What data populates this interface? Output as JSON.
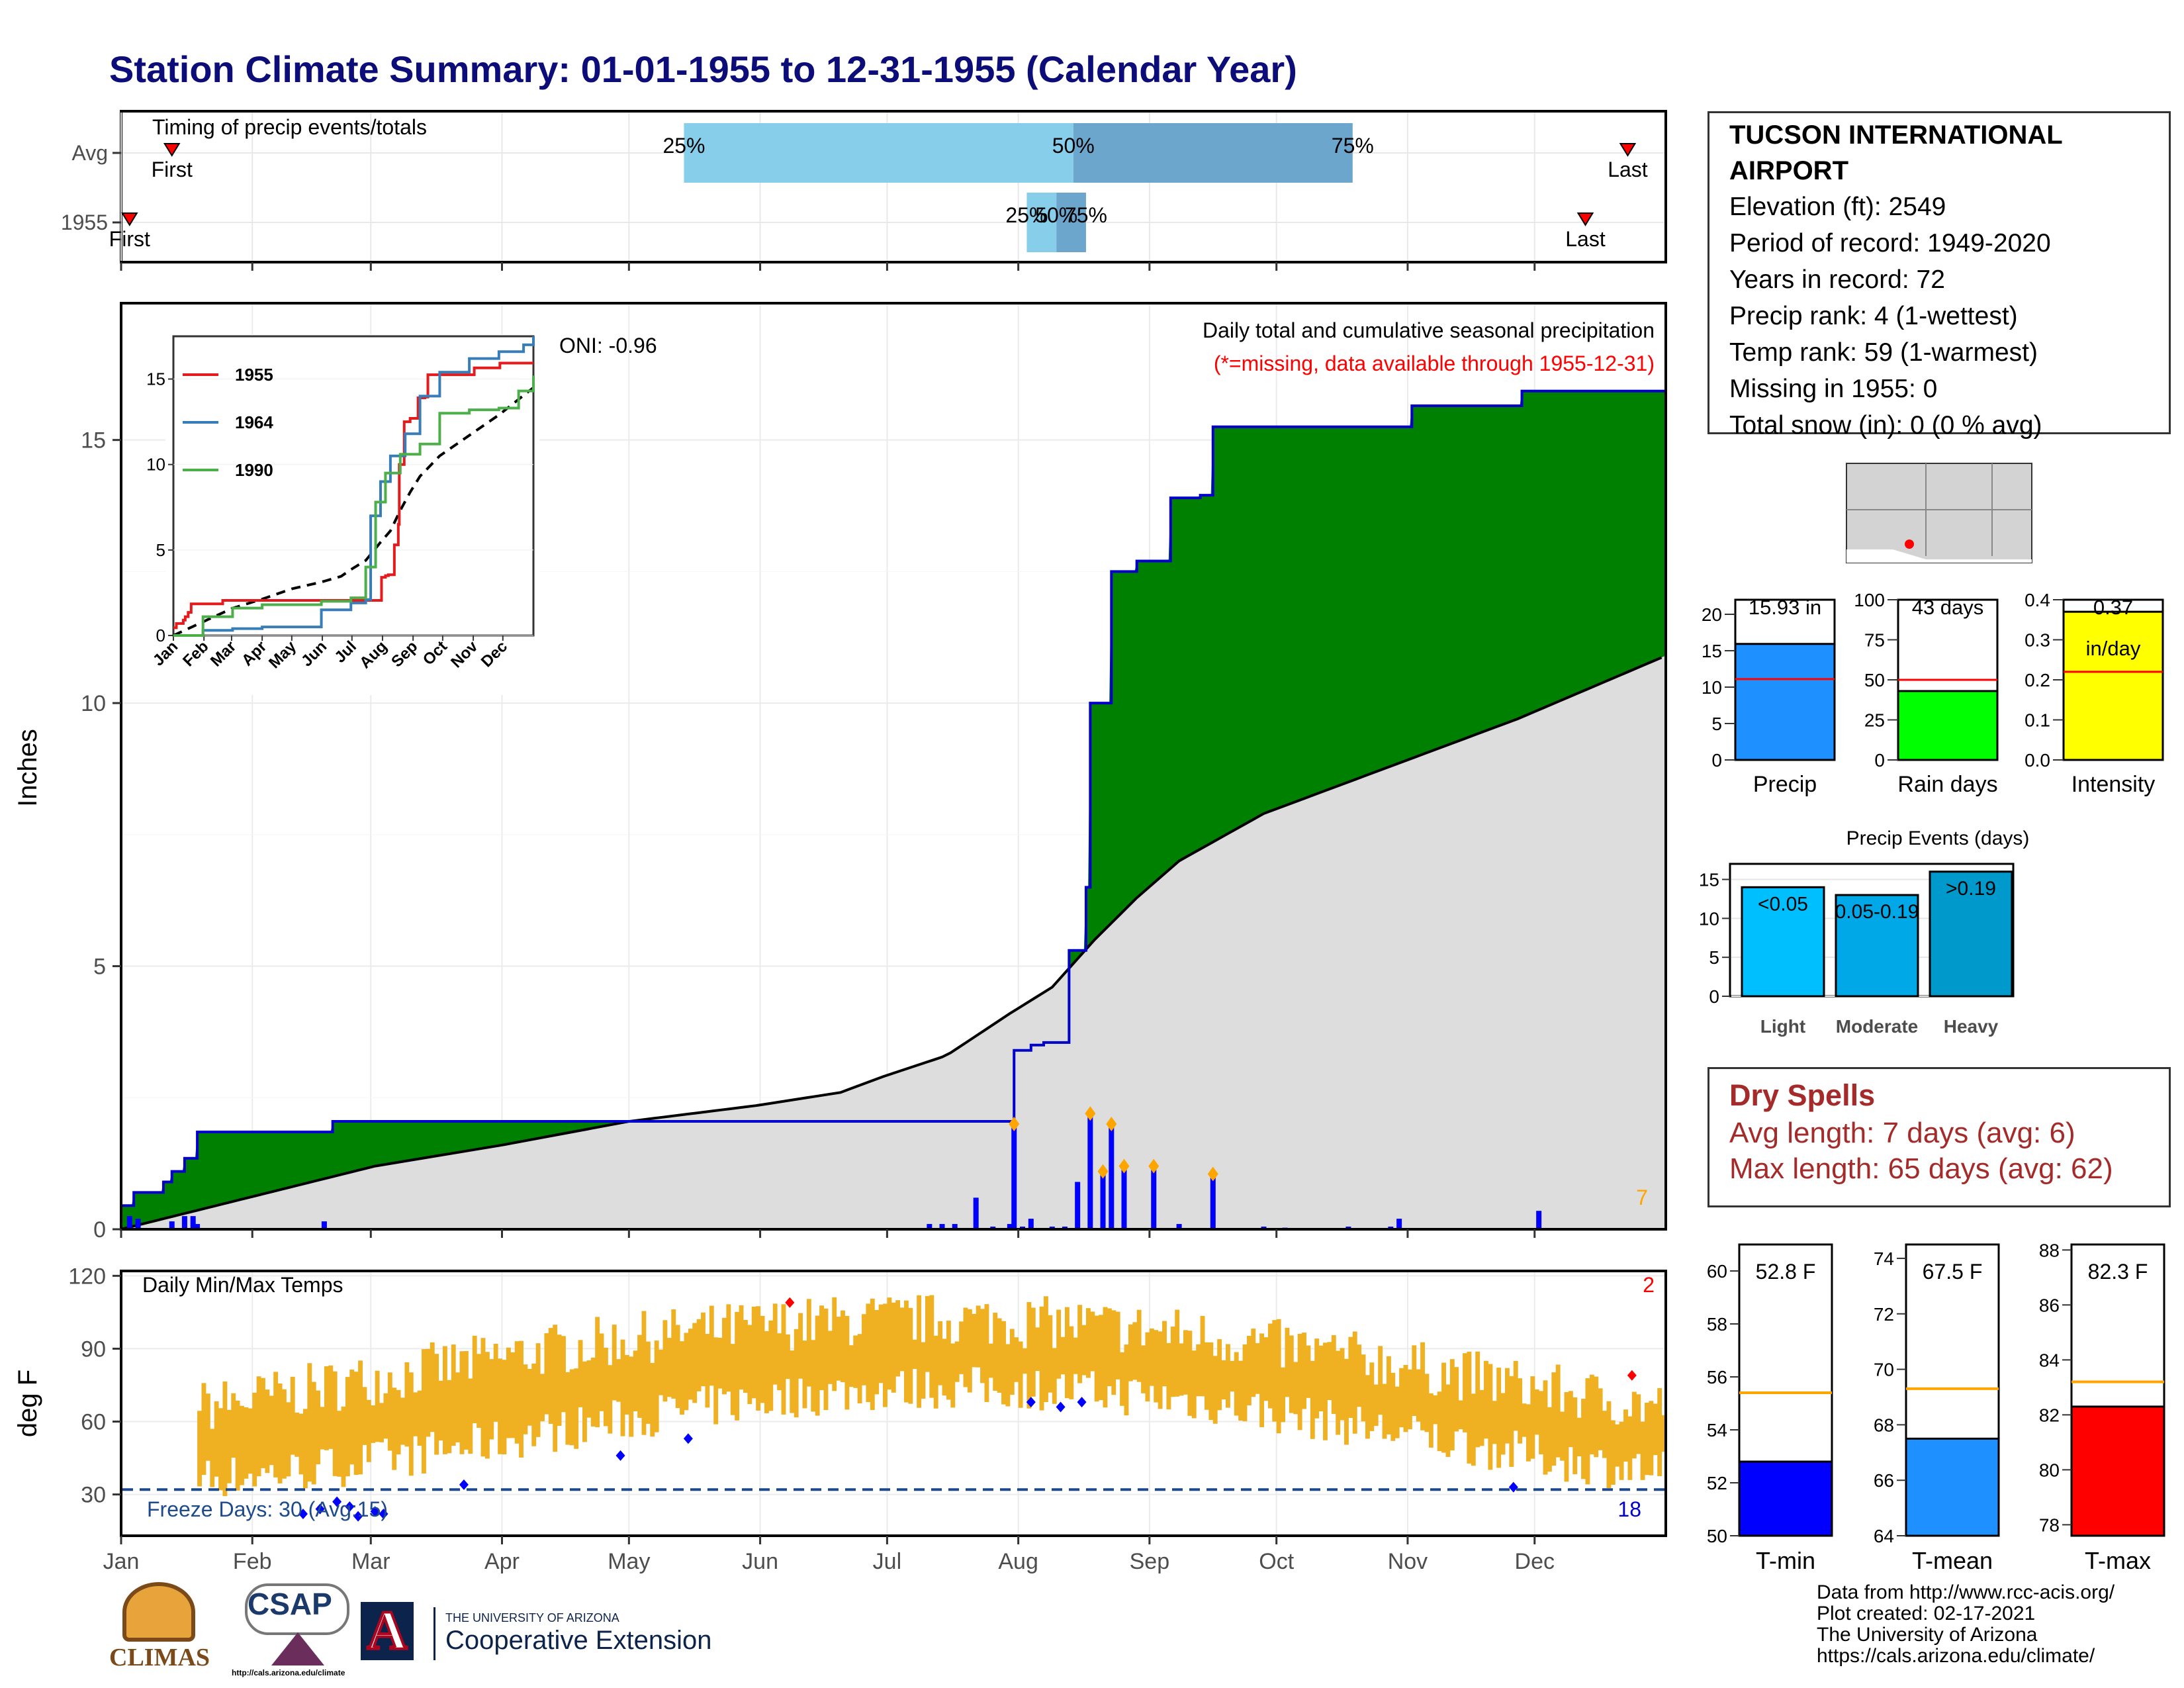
{
  "title": "Station Climate Summary: 01-01-1955 to 12-31-1955 (Calendar Year)",
  "colors": {
    "title": "#0d0d7a",
    "precip_bar": "#0000ff",
    "cum_wet": "#008000",
    "cum_dry": "#7f4f00",
    "normal_fill": "#dddddd",
    "temp_band": "#efb122",
    "tmax_avg": "#ff0000",
    "tmin_avg": "#0000cc",
    "dry_spells": "#a52a2a"
  },
  "station_info": {
    "name": "TUCSON INTERNATIONAL AIRPORT",
    "elevation": "Elevation (ft): 2549",
    "period": "Period of record: 1949-2020",
    "years": "Years in record: 72",
    "precip_rank": "Precip rank: 4 (1-wettest)",
    "temp_rank": "Temp rank: 59 (1-warmest)",
    "missing": "Missing in 1955: 0",
    "snow": "Total snow (in): 0 (0 % avg)"
  },
  "timing_panel": {
    "title": "Timing of precip events/totals",
    "rows": [
      "Avg",
      "1955"
    ],
    "avg": {
      "first_day": 12,
      "p25_day": 133,
      "p50_day": 225,
      "p75_day": 291,
      "last_day": 356
    },
    "year": {
      "first_day": 2,
      "p25_day": 214,
      "p50_day": 221,
      "p75_day": 228,
      "last_day": 346
    },
    "labels": {
      "p25": "25%",
      "p50": "50%",
      "p75": "75%",
      "first": "First",
      "last": "Last"
    }
  },
  "precip_panel": {
    "title": "Daily total and cumulative seasonal precipitation",
    "missing_note": "(*=missing, data available through 1955-12-31)",
    "ylabel": "Inches",
    "oni": "ONI: -0.96",
    "corner_count": "7",
    "y_ticks": [
      "0",
      "5",
      "10",
      "15"
    ],
    "ylim": [
      0,
      17.6
    ],
    "cumulative_1955": [
      [
        0,
        0.45
      ],
      [
        3,
        0.7
      ],
      [
        10,
        0.9
      ],
      [
        12,
        1.1
      ],
      [
        15,
        1.35
      ],
      [
        18,
        1.85
      ],
      [
        50,
        2.05
      ],
      [
        210,
        2.05
      ],
      [
        211,
        3.4
      ],
      [
        212,
        3.4
      ],
      [
        215,
        3.5
      ],
      [
        218,
        3.55
      ],
      [
        220,
        3.55
      ],
      [
        224,
        5.3
      ],
      [
        228,
        6.5
      ],
      [
        229,
        10.0
      ],
      [
        234,
        12.5
      ],
      [
        240,
        12.7
      ],
      [
        248,
        13.9
      ],
      [
        255,
        13.95
      ],
      [
        258,
        15.25
      ],
      [
        300,
        15.25
      ],
      [
        305,
        15.65
      ],
      [
        330,
        15.65
      ],
      [
        331,
        15.93
      ],
      [
        365,
        15.93
      ]
    ],
    "cumulative_normal": [
      [
        0,
        0
      ],
      [
        30,
        0.6
      ],
      [
        60,
        1.2
      ],
      [
        90,
        1.6
      ],
      [
        120,
        2.05
      ],
      [
        150,
        2.35
      ],
      [
        170,
        2.6
      ],
      [
        180,
        2.9
      ],
      [
        195,
        3.3
      ],
      [
        210,
        4.1
      ],
      [
        220,
        4.6
      ],
      [
        230,
        5.5
      ],
      [
        240,
        6.3
      ],
      [
        250,
        7.0
      ],
      [
        270,
        7.9
      ],
      [
        300,
        8.8
      ],
      [
        330,
        9.7
      ],
      [
        365,
        10.9
      ]
    ],
    "daily_bars": [
      [
        2,
        0.25
      ],
      [
        4,
        0.2
      ],
      [
        12,
        0.15
      ],
      [
        15,
        0.25
      ],
      [
        17,
        0.25
      ],
      [
        18,
        0.1
      ],
      [
        48,
        0.15
      ],
      [
        191,
        0.1
      ],
      [
        194,
        0.1
      ],
      [
        197,
        0.1
      ],
      [
        202,
        0.6
      ],
      [
        206,
        0.05
      ],
      [
        210,
        0.1
      ],
      [
        211,
        2.0
      ],
      [
        213,
        0.05
      ],
      [
        215,
        0.2
      ],
      [
        220,
        0.05
      ],
      [
        223,
        0.05
      ],
      [
        226,
        0.9
      ],
      [
        229,
        2.2
      ],
      [
        232,
        1.1
      ],
      [
        234,
        2.0
      ],
      [
        237,
        1.2
      ],
      [
        244,
        1.2
      ],
      [
        250,
        0.1
      ],
      [
        258,
        1.05
      ],
      [
        270,
        0.05
      ],
      [
        275,
        0.03
      ],
      [
        290,
        0.05
      ],
      [
        300,
        0.05
      ],
      [
        302,
        0.2
      ],
      [
        335,
        0.35
      ]
    ],
    "inset": {
      "series": [
        {
          "name": "1955",
          "color": "#e41a1c"
        },
        {
          "name": "1964",
          "color": "#377eb8"
        },
        {
          "name": "1990",
          "color": "#4daf4a"
        }
      ],
      "months": [
        "Jan",
        "Feb",
        "Mar",
        "Apr",
        "May",
        "Jun",
        "Jul",
        "Aug",
        "Sep",
        "Oct",
        "Nov",
        "Dec"
      ],
      "y_ticks": [
        "0",
        "5",
        "10",
        "15"
      ],
      "ylim": [
        0,
        17.5
      ]
    }
  },
  "temp_panel": {
    "title": "Daily Min/Max Temps",
    "ylabel": "deg F",
    "freeze_text": "Freeze Days: 30 (Avg:15)",
    "right_top_count": "2",
    "right_bottom_count": "18",
    "y_ticks": [
      "30",
      "60",
      "90",
      "120"
    ],
    "ylim": [
      13,
      122
    ],
    "freeze_line": 32,
    "months": [
      "Jan",
      "Feb",
      "Mar",
      "Apr",
      "May",
      "Jun",
      "Jul",
      "Aug",
      "Sep",
      "Oct",
      "Nov",
      "Dec"
    ]
  },
  "summary_bars": [
    {
      "label": "Precip",
      "value": 15.93,
      "avg": 11.1,
      "max": 22,
      "ticks": [
        "0",
        "5",
        "10",
        "15",
        "20"
      ],
      "tickvals": [
        0,
        5,
        10,
        15,
        20
      ],
      "text": "15.93 in",
      "color": "#1e90ff"
    },
    {
      "label": "Rain days",
      "value": 43,
      "avg": 50,
      "max": 100,
      "ticks": [
        "0",
        "25",
        "50",
        "75",
        "100"
      ],
      "tickvals": [
        0,
        25,
        50,
        75,
        100
      ],
      "text": "43 days",
      "color": "#00ff00"
    },
    {
      "label": "Intensity",
      "value": 0.37,
      "avg": 0.22,
      "max": 0.4,
      "ticks": [
        "0.0",
        "0.1",
        "0.2",
        "0.3",
        "0.4"
      ],
      "tickvals": [
        0,
        0.1,
        0.2,
        0.3,
        0.4
      ],
      "text": "0.37",
      "text2": "in/day",
      "color": "#ffff00"
    }
  ],
  "precip_events": {
    "title": "Precip Events (days)",
    "ticks": [
      "0",
      "5",
      "10",
      "15"
    ],
    "bars": [
      {
        "label": "Light",
        "inner": "<0.05",
        "value": 14,
        "color": "#00bfff"
      },
      {
        "label": "Moderate",
        "inner": "0.05-0.19",
        "value": 13,
        "color": "#00a8e8"
      },
      {
        "label": "Heavy",
        "inner": ">0.19",
        "value": 16,
        "color": "#0099cc"
      }
    ]
  },
  "dry_spells": {
    "title": "Dry Spells",
    "avg_length": "Avg length: 7 days (avg: 6)",
    "max_length": "Max length: 65 days (avg: 62)"
  },
  "temp_summary": [
    {
      "label": "T-min",
      "value": 52.8,
      "avg": 55.4,
      "min": 50,
      "max": 61,
      "ticks": [
        "50",
        "52",
        "54",
        "56",
        "58",
        "60"
      ],
      "tickvals": [
        50,
        52,
        54,
        56,
        58,
        60
      ],
      "text": "52.8 F",
      "color": "#0000ff"
    },
    {
      "label": "T-mean",
      "value": 67.5,
      "avg": 69.3,
      "min": 64,
      "max": 74.5,
      "ticks": [
        "64",
        "66",
        "68",
        "70",
        "72",
        "74"
      ],
      "tickvals": [
        64,
        66,
        68,
        70,
        72,
        74
      ],
      "text": "67.5 F",
      "color": "#1e90ff"
    },
    {
      "label": "T-max",
      "value": 82.3,
      "avg": 83.2,
      "min": 77.6,
      "max": 88.2,
      "ticks": [
        "78",
        "80",
        "82",
        "84",
        "86",
        "88"
      ],
      "tickvals": [
        78,
        80,
        82,
        84,
        86,
        88
      ],
      "text": "82.3 F",
      "color": "#ff0000"
    }
  ],
  "footer": {
    "line1": "Data from http://www.rcc-acis.org/",
    "line2": "Plot created: 02-17-2021",
    "line3": "The University of Arizona",
    "line4": "https://cals.arizona.edu/climate/"
  },
  "logos": {
    "climas": "CLIMAS",
    "csap": "CSAP",
    "csap_url": "http://cals.arizona.edu/climate",
    "ua_small": "THE UNIVERSITY OF ARIZONA",
    "ua_big": "Cooperative Extension"
  }
}
